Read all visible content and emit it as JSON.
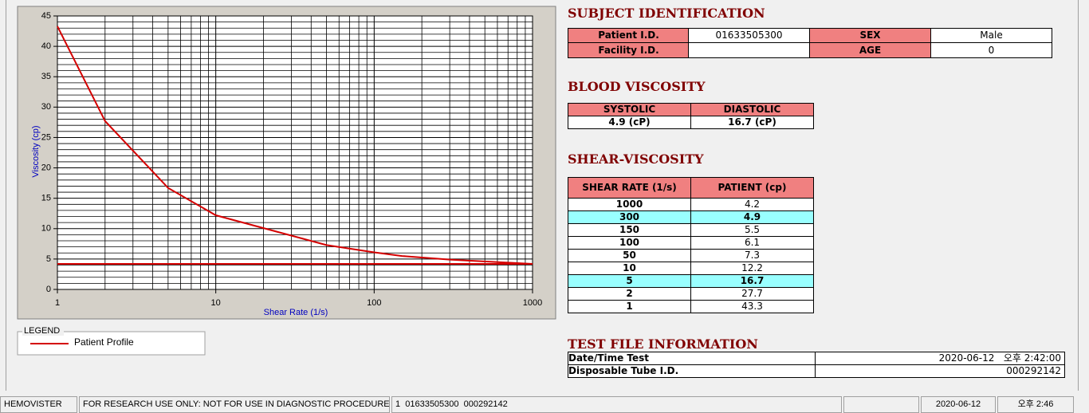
{
  "chart_data": {
    "type": "line",
    "y_label": "Viscosity (cp)",
    "x_label": "Shear Rate (1/s)",
    "xscale": "log",
    "xlim": [
      1,
      1000
    ],
    "xticks": [
      1,
      10,
      100,
      1000
    ],
    "ylim": [
      0,
      45
    ],
    "yticks": [
      0,
      5,
      10,
      15,
      20,
      25,
      30,
      35,
      40,
      45
    ],
    "grid": true,
    "legend_title": "LEGEND",
    "series": [
      {
        "name": "Patient Profile",
        "color": "#d40000",
        "x": [
          1,
          2,
          5,
          10,
          50,
          100,
          150,
          300,
          1000
        ],
        "values": [
          43.3,
          27.7,
          16.7,
          12.2,
          7.3,
          6.1,
          5.5,
          4.9,
          4.2
        ]
      },
      {
        "color": "#d40000",
        "x": [
          1,
          1000
        ],
        "values": [
          4.2,
          4.2
        ]
      }
    ]
  },
  "subject": {
    "title": "SUBJECT IDENTIFICATION",
    "rows": [
      [
        "Patient I.D.",
        "01633505300",
        "SEX",
        "Male"
      ],
      [
        "Facility I.D.",
        "AGE",
        "0"
      ]
    ]
  },
  "blood": {
    "title": "BLOOD VISCOSITY",
    "headers": [
      "SYSTOLIC",
      "DIASTOLIC"
    ],
    "values": [
      "4.9 (cP)",
      "16.7 (cP)"
    ]
  },
  "shear": {
    "title": "SHEAR-VISCOSITY",
    "headers": [
      "SHEAR RATE (1/s)",
      "PATIENT (cp)"
    ],
    "rows": [
      [
        "1000",
        "4.2"
      ],
      [
        "300",
        "4.9"
      ],
      [
        "150",
        "5.5"
      ],
      [
        "100",
        "6.1"
      ],
      [
        "50",
        "7.3"
      ],
      [
        "10",
        "12.2"
      ],
      [
        "5",
        "16.7"
      ],
      [
        "2",
        "27.7"
      ],
      [
        "1",
        "43.3"
      ]
    ],
    "highlight_rows": [
      1,
      6
    ]
  },
  "test_file": {
    "title": "TEST FILE INFORMATION",
    "rows": [
      [
        "Date/Time Test",
        "2020-06-12   오후 2:42:00"
      ],
      [
        "Disposable Tube I.D.",
        "000292142"
      ]
    ]
  },
  "status_bar": [
    "HEMOVISTER",
    "FOR RESEARCH USE ONLY: NOT FOR USE IN DIAGNOSTIC PROCEDURES",
    "1  01633505300  000292142",
    "2020-06-12",
    "오후 2:46"
  ]
}
